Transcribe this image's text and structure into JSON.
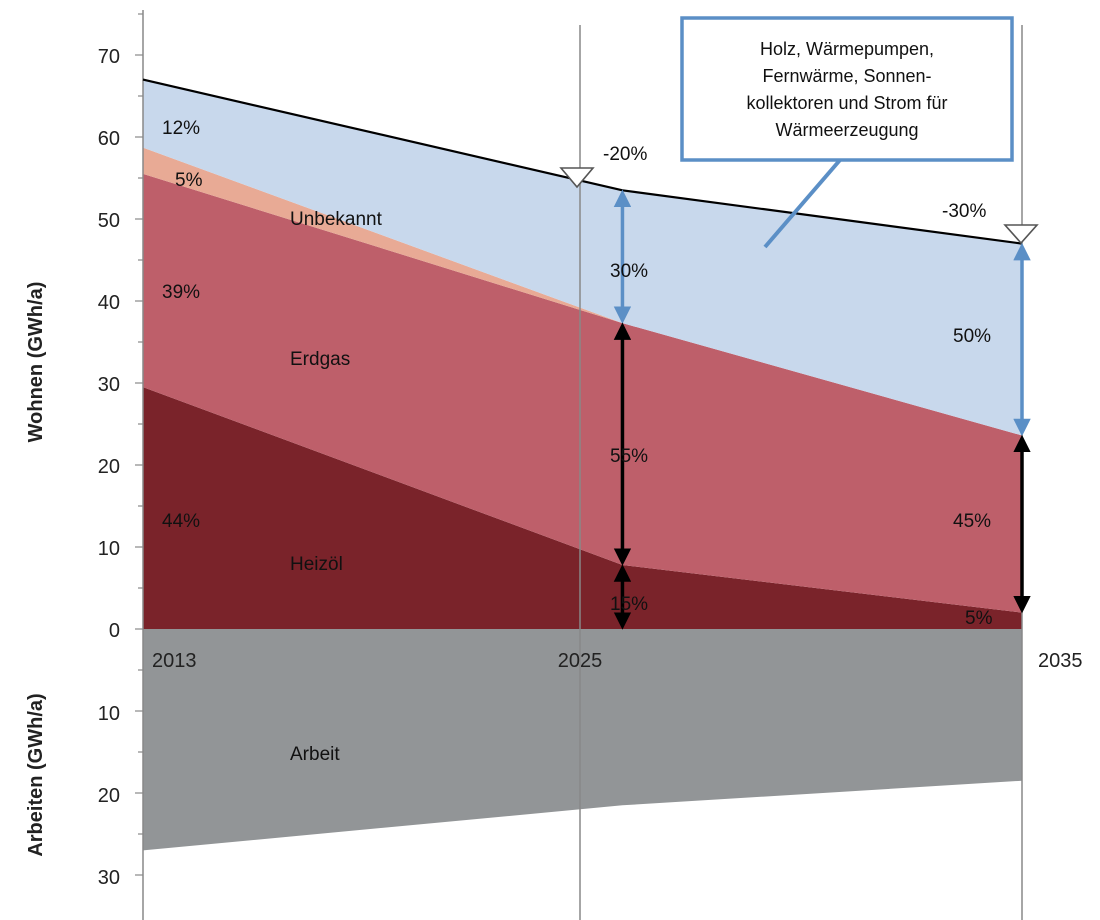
{
  "chart_data": {
    "type": "area",
    "x": [
      2013,
      2025,
      2035
    ],
    "x_tick_labels": [
      "2013",
      "2025",
      "2035"
    ],
    "ylabel_top": "Wohnen (GWh/a)",
    "ylabel_bottom": "Arbeiten (GWh/a)",
    "ylim_top": [
      0,
      70
    ],
    "ylim_bottom": [
      0,
      30
    ],
    "yticks_top": [
      "0",
      "10",
      "20",
      "30",
      "40",
      "50",
      "60",
      "70"
    ],
    "yticks_bottom": [
      "10",
      "20",
      "30"
    ],
    "series": [
      {
        "name": "Heizöl",
        "values": [
          29.5,
          7.8,
          2.0
        ],
        "color": "#7a232a"
      },
      {
        "name": "Erdgas",
        "values": [
          26.0,
          29.5,
          21.6
        ],
        "color": "#be5f6a"
      },
      {
        "name": "",
        "values": [
          3.2,
          0.0,
          0.0
        ],
        "color": "#e8aa95"
      },
      {
        "name": "Unbekannt",
        "values": [
          8.3,
          16.2,
          23.3
        ],
        "color": "#c8d8ec"
      }
    ],
    "work_series": {
      "name": "Arbeit",
      "values": [
        27.0,
        21.5,
        18.5
      ],
      "color": "#929597"
    },
    "total_line": [
      67.0,
      53.5,
      47.0
    ],
    "series_labels": {
      "heizoel": "Heizöl",
      "erdgas": "Erdgas",
      "unbekannt": "Unbekannt",
      "arbeit": "Arbeit"
    },
    "percent_labels_2013": [
      "12%",
      "5%",
      "39%",
      "44%"
    ],
    "percent_labels_2025": [
      "30%",
      "55%",
      "15%"
    ],
    "percent_labels_2035": [
      "50%",
      "45%",
      "5%"
    ],
    "reduction_labels": [
      "-20%",
      "-30%"
    ],
    "callout_text": [
      "Holz, Wärmepumpen,",
      "Fernwärme, Sonnen-",
      "kollektoren und Strom für",
      "Wärmeerzeugung"
    ],
    "colors": {
      "total_line": "#000000",
      "blue_arrow": "#5b8fc6",
      "black_arrow": "#000000",
      "callout_border": "#5b8fc6",
      "gridline": "#888888"
    }
  }
}
